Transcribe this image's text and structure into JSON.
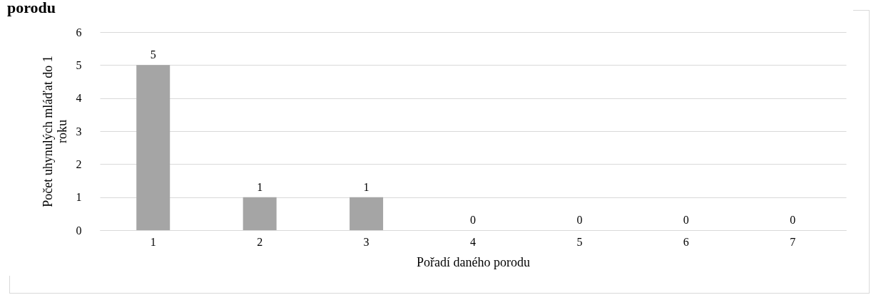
{
  "chart_data": {
    "type": "bar",
    "title": "porodu",
    "xlabel": "Pořadí daného porodu",
    "ylabel": "Počet uhynulých mláďat do 1 roku",
    "categories": [
      "1",
      "2",
      "3",
      "4",
      "5",
      "6",
      "7"
    ],
    "values": [
      5,
      1,
      1,
      0,
      0,
      0,
      0
    ],
    "color": "#a5a5a5",
    "ylim": [
      0,
      6
    ],
    "yticks": [
      0,
      1,
      2,
      3,
      4,
      5,
      6
    ],
    "grid": "y",
    "data_labels": true
  }
}
